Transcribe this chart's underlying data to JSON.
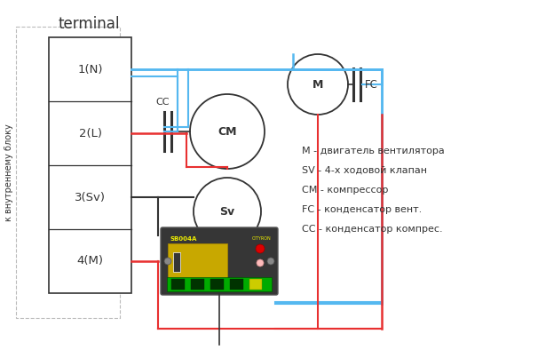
{
  "title": "terminal",
  "background_color": "#ffffff",
  "terminal_labels": [
    "1(N)",
    "2(L)",
    "3(Sv)",
    "4(M)"
  ],
  "side_label": "к внутреннему блоку",
  "legend": [
    "M - двигатель вентилятора",
    "SV - 4-х ходовой клапан",
    "CM - компрессор",
    "FC - конденсатор вент.",
    "CC - конденсатор компрес."
  ],
  "blue_color": "#55b8f0",
  "red_color": "#e83030",
  "black_color": "#333333",
  "gray_color": "#777777"
}
